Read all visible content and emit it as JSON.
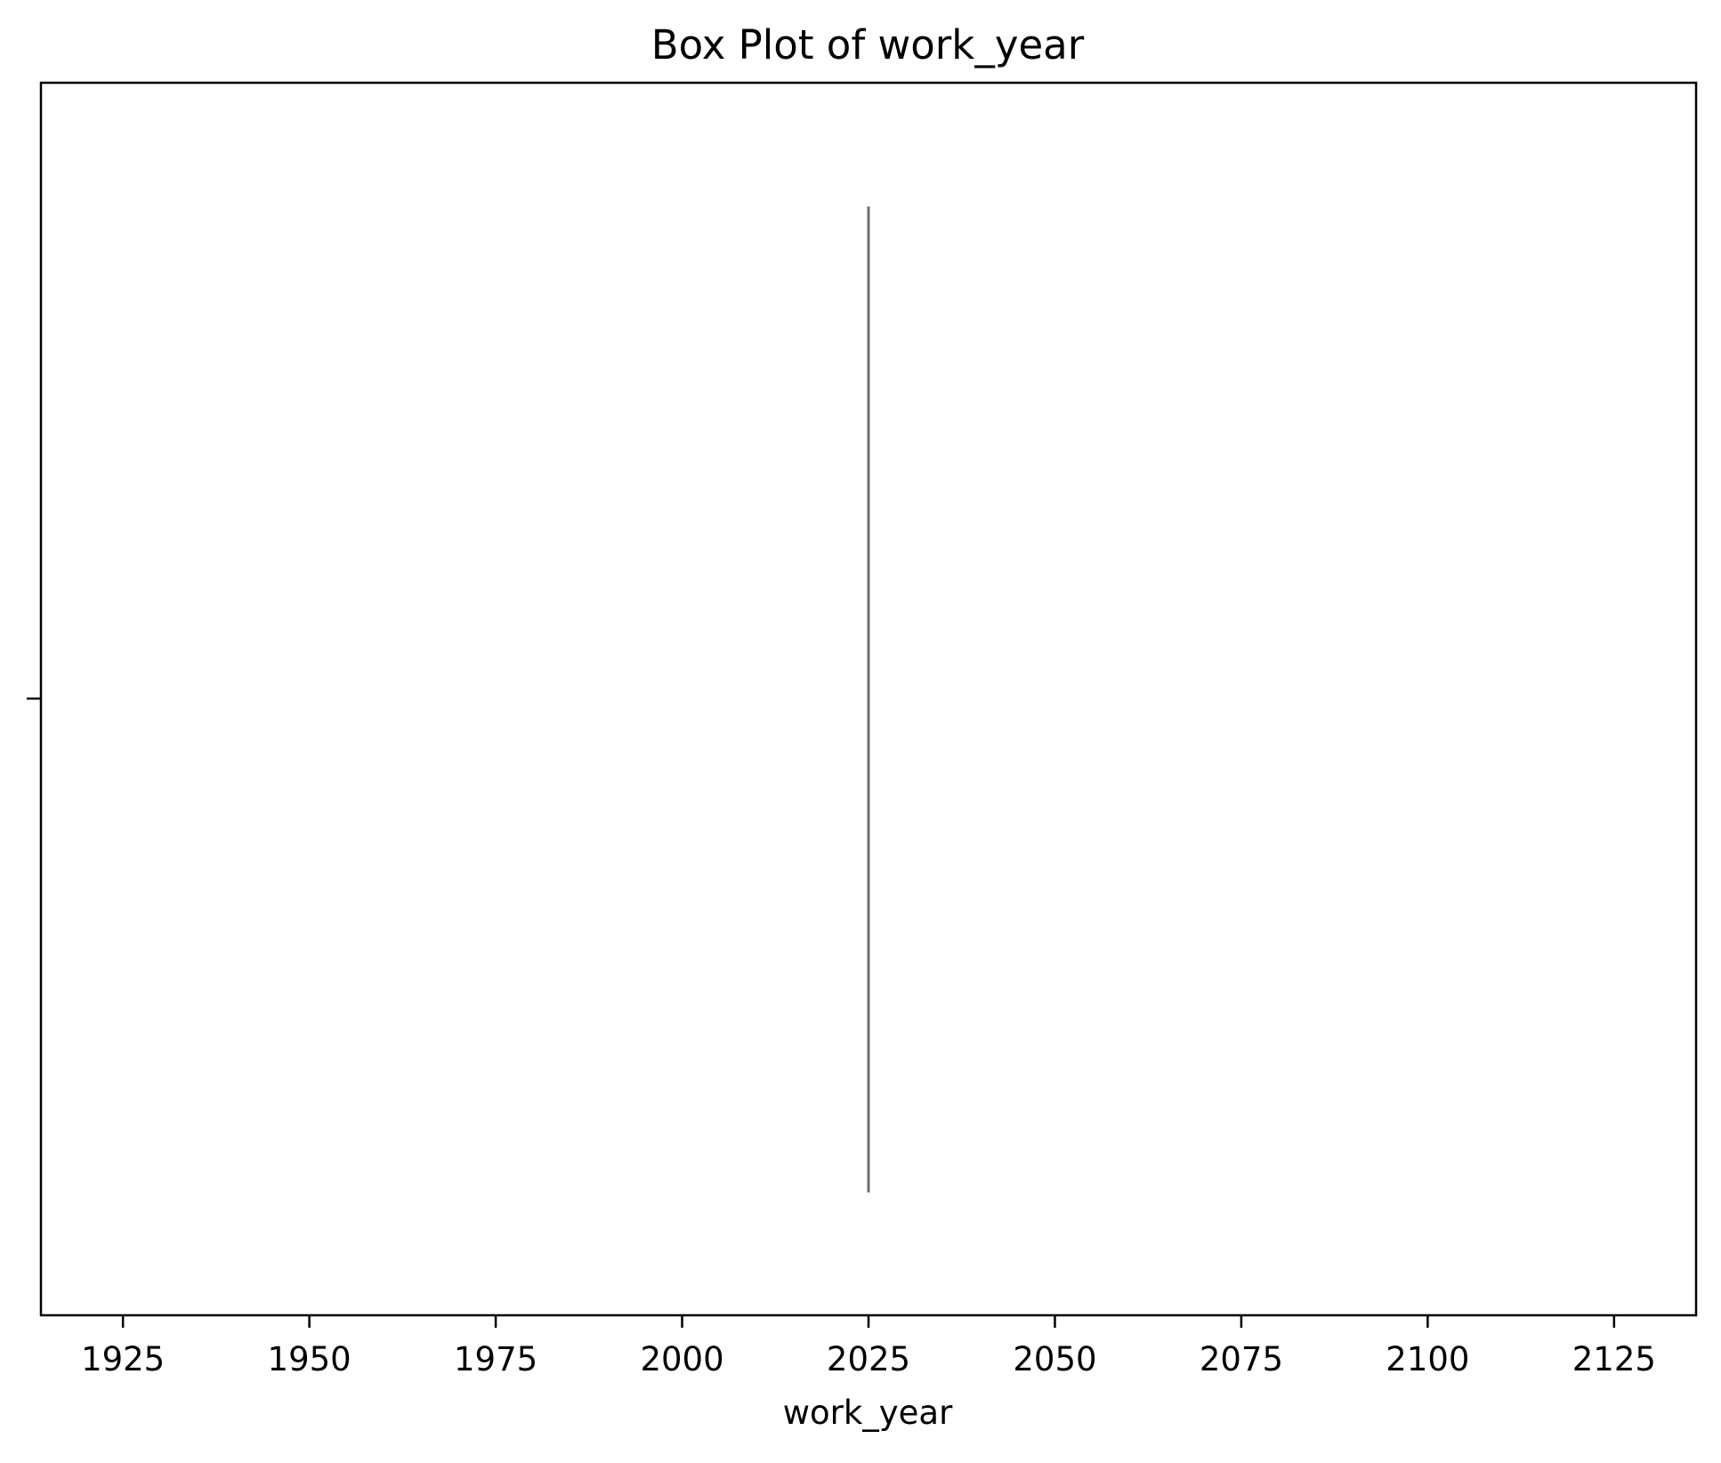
{
  "chart_data": {
    "type": "box",
    "title": "Box Plot of work_year",
    "xlabel": "work_year",
    "ylabel": "",
    "orientation": "horizontal",
    "xlim": [
      1914,
      2136
    ],
    "x_ticks": [
      1925,
      1950,
      1975,
      2000,
      2025,
      2050,
      2075,
      2100,
      2125
    ],
    "x_tick_labels": [
      "1925",
      "1950",
      "1975",
      "2000",
      "2025",
      "2050",
      "2075",
      "2100",
      "2125"
    ],
    "grid": false,
    "legend": false,
    "box": {
      "min": 2025,
      "q1": 2025,
      "median": 2025,
      "q3": 2025,
      "max": 2025,
      "color": "#1f77b4",
      "line_color": "#6f6f6f"
    }
  }
}
